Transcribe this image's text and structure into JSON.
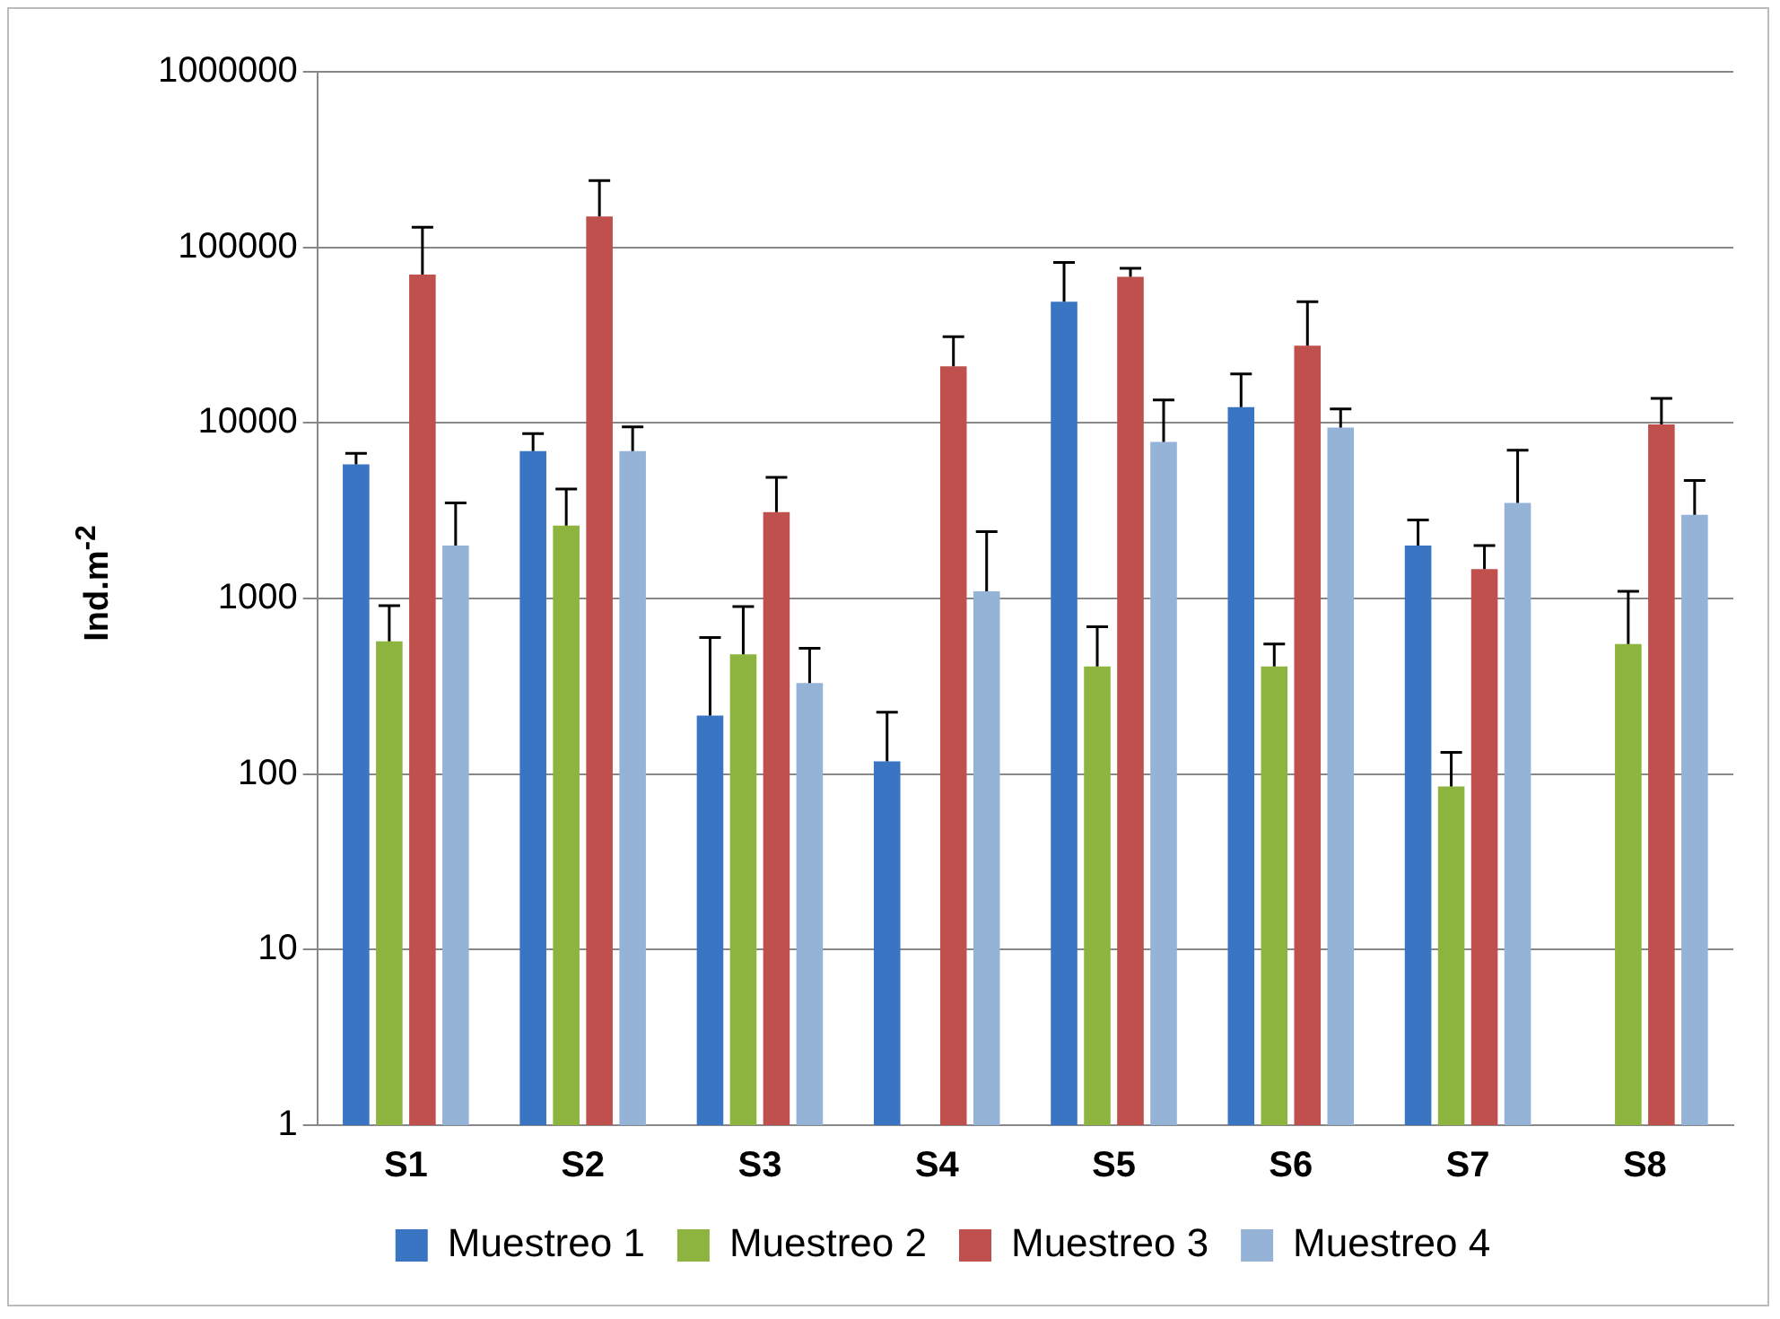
{
  "chart_data": {
    "type": "bar",
    "ylabel": "Ind.m$^{-2}$",
    "categories": [
      "S1",
      "S2",
      "S3",
      "S4",
      "S5",
      "S6",
      "S7",
      "S8"
    ],
    "log": "y",
    "ylim": [
      1,
      1000000
    ],
    "yticks": [
      1,
      10,
      100,
      1000,
      10000,
      100000,
      1000000
    ],
    "grid": "y",
    "legend": "bottom",
    "series": [
      {
        "name": "Muestreo 1",
        "color": "#3a75c4",
        "values": [
          5800,
          6900,
          215,
          118,
          49000,
          12300,
          2000,
          null
        ],
        "errors": [
          [
            5800,
            6700
          ],
          [
            6900,
            8700
          ],
          [
            215,
            600
          ],
          [
            118,
            225
          ],
          [
            49000,
            82000
          ],
          [
            12300,
            19000
          ],
          [
            2000,
            2800
          ],
          null
        ]
      },
      {
        "name": "Muestreo 2",
        "color": "#8db43e",
        "values": [
          570,
          2600,
          480,
          null,
          410,
          410,
          85,
          550
        ],
        "errors": [
          [
            570,
            910
          ],
          [
            2600,
            4200
          ],
          [
            480,
            900
          ],
          null,
          [
            410,
            690
          ],
          [
            410,
            550
          ],
          [
            85,
            133
          ],
          [
            550,
            1100
          ]
        ]
      },
      {
        "name": "Muestreo 3",
        "color": "#c0504d",
        "values": [
          70000,
          150000,
          3100,
          21000,
          68000,
          27500,
          1470,
          9800
        ],
        "errors": [
          [
            70000,
            130000
          ],
          [
            150000,
            240000
          ],
          [
            3100,
            4900
          ],
          [
            21000,
            31000
          ],
          [
            68000,
            76000
          ],
          [
            27500,
            49000
          ],
          [
            1470,
            2000
          ],
          [
            9800,
            13800
          ]
        ]
      },
      {
        "name": "Muestreo 4",
        "color": "#95b3d7",
        "values": [
          2000,
          6900,
          330,
          1100,
          7800,
          9400,
          3500,
          3000
        ],
        "errors": [
          [
            2000,
            3500
          ],
          [
            6900,
            9500
          ],
          [
            330,
            520
          ],
          [
            1100,
            2400
          ],
          [
            7800,
            13500
          ],
          [
            9400,
            12000
          ],
          [
            3500,
            7000
          ],
          [
            3000,
            4700
          ]
        ]
      }
    ]
  }
}
